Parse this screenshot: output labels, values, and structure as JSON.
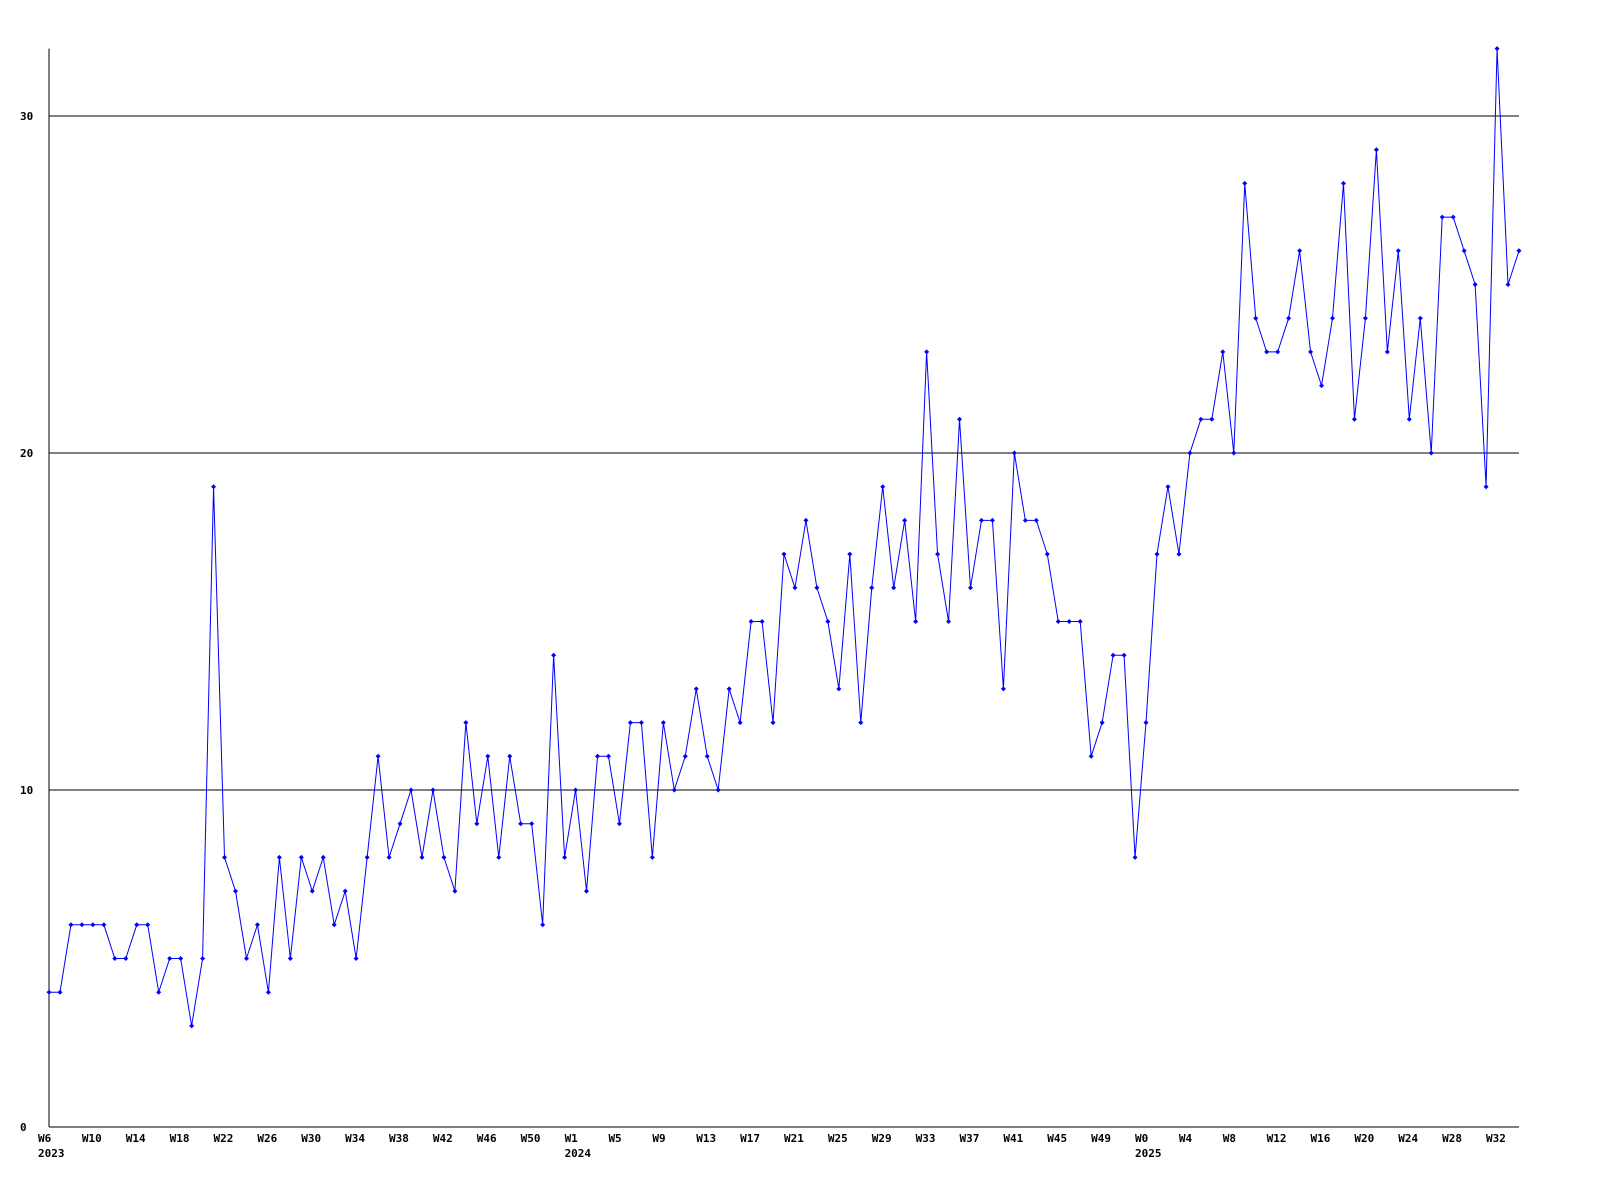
{
  "chart_data": {
    "type": "line",
    "categories": [
      "W6",
      null,
      null,
      null,
      "W10",
      null,
      null,
      null,
      "W14",
      null,
      null,
      null,
      "W18",
      null,
      null,
      null,
      "W22",
      null,
      null,
      null,
      "W26",
      null,
      null,
      null,
      "W30",
      null,
      null,
      null,
      "W34",
      null,
      null,
      null,
      "W38",
      null,
      null,
      null,
      "W42",
      null,
      null,
      null,
      "W46",
      null,
      null,
      null,
      "W50",
      null,
      null,
      null,
      "W1",
      null,
      null,
      null,
      "W5",
      null,
      null,
      null,
      "W9",
      null,
      null,
      null,
      "W13",
      null,
      null,
      null,
      "W17",
      null,
      null,
      null,
      "W21",
      null,
      null,
      null,
      "W25",
      null,
      null,
      null,
      "W29",
      null,
      null,
      null,
      "W33",
      null,
      null,
      null,
      "W37",
      null,
      null,
      null,
      "W41",
      null,
      null,
      null,
      "W45",
      null,
      null,
      null,
      "W49",
      null,
      null,
      null,
      "W0",
      null,
      null,
      null,
      "W4",
      null,
      null,
      null,
      "W8",
      null,
      null,
      null,
      "W12",
      null,
      null,
      null,
      "W16",
      null,
      null,
      null,
      "W20",
      null,
      null,
      null,
      "W24",
      null,
      null,
      null,
      "W28",
      null,
      null,
      null,
      "W32",
      null,
      null
    ],
    "category_years": [
      "2023",
      null,
      null,
      null,
      null,
      null,
      null,
      null,
      null,
      null,
      null,
      null,
      null,
      null,
      null,
      null,
      null,
      null,
      null,
      null,
      null,
      null,
      null,
      null,
      null,
      null,
      null,
      null,
      null,
      null,
      null,
      null,
      null,
      null,
      null,
      null,
      null,
      null,
      null,
      null,
      null,
      null,
      null,
      null,
      null,
      null,
      null,
      null,
      "2024",
      null,
      null,
      null,
      null,
      null,
      null,
      null,
      null,
      null,
      null,
      null,
      null,
      null,
      null,
      null,
      null,
      null,
      null,
      null,
      null,
      null,
      null,
      null,
      null,
      null,
      null,
      null,
      null,
      null,
      null,
      null,
      null,
      null,
      null,
      null,
      null,
      null,
      null,
      null,
      null,
      null,
      null,
      null,
      null,
      null,
      null,
      null,
      null,
      null,
      null,
      null,
      "2025",
      null,
      null,
      null,
      null,
      null,
      null,
      null,
      null,
      null,
      null,
      null,
      null,
      null,
      null,
      null,
      null,
      null,
      null,
      null,
      null,
      null,
      null,
      null,
      null,
      null,
      null,
      null,
      null,
      null,
      null,
      null,
      null,
      null,
      null
    ],
    "series": [
      {
        "color": "#0000ff",
        "values": [
          4,
          4,
          6,
          6,
          6,
          6,
          5,
          5,
          6,
          6,
          4,
          5,
          5,
          3,
          5,
          19,
          8,
          7,
          5,
          6,
          4,
          8,
          5,
          8,
          7,
          8,
          6,
          7,
          5,
          8,
          11,
          8,
          9,
          10,
          8,
          10,
          8,
          7,
          12,
          9,
          11,
          8,
          11,
          9,
          9,
          6,
          14,
          8,
          10,
          7,
          11,
          11,
          9,
          12,
          12,
          8,
          12,
          10,
          11,
          13,
          11,
          10,
          13,
          12,
          15,
          15,
          12,
          17,
          16,
          18,
          16,
          15,
          13,
          17,
          12,
          16,
          19,
          16,
          18,
          15,
          23,
          17,
          15,
          21,
          16,
          18,
          18,
          13,
          20,
          18,
          18,
          17,
          15,
          15,
          15,
          11,
          12,
          14,
          14,
          8,
          12,
          17,
          19,
          17,
          20,
          21,
          21,
          23,
          20,
          28,
          24,
          23,
          23,
          24,
          26,
          23,
          22,
          24,
          28,
          21,
          24,
          29,
          23,
          26,
          21,
          24,
          20,
          27,
          27,
          26,
          25,
          19,
          32,
          25,
          26
        ]
      }
    ],
    "ylim": [
      0,
      32
    ],
    "yticks": [
      0,
      10,
      20,
      30
    ],
    "grid": true
  }
}
